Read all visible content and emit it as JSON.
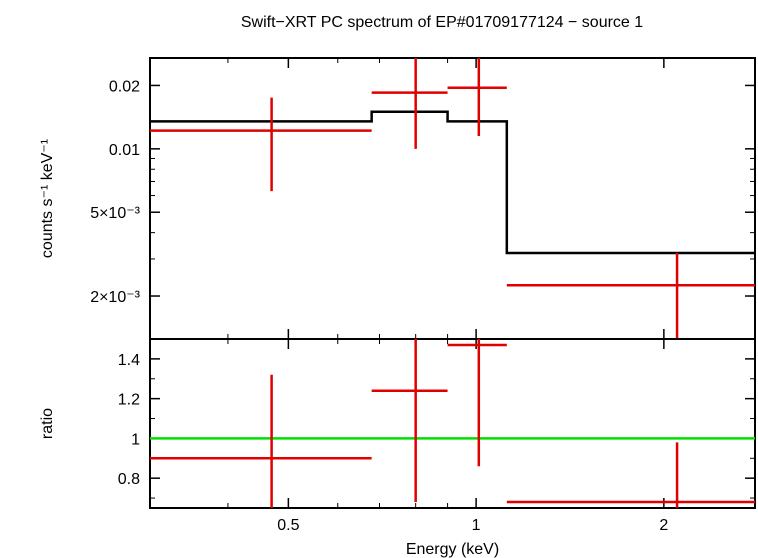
{
  "title": "Swift−XRT PC spectrum of EP#01709177124 − source 1",
  "colors": {
    "data": "#e00000",
    "model": "#000000",
    "unity": "#00e000",
    "frame": "#000000"
  },
  "chart_data": [
    {
      "type": "scatter",
      "panel": "spectrum",
      "xscale": "log",
      "yscale": "log",
      "xlim": [
        0.3,
        2.8
      ],
      "ylim": [
        0.00125,
        0.027
      ],
      "ylabel": "counts s⁻¹ keV⁻¹",
      "yticks": [
        {
          "value": 0.02,
          "label": "0.02"
        },
        {
          "value": 0.01,
          "label": "0.01"
        },
        {
          "value": 0.005,
          "label": "5×10⁻³"
        },
        {
          "value": 0.002,
          "label": "2×10⁻³"
        }
      ],
      "minor_yticks": [
        0.003,
        0.004,
        0.006,
        0.007,
        0.008,
        0.009
      ],
      "data_points": [
        {
          "x_lo": 0.3,
          "x": 0.47,
          "x_hi": 0.68,
          "y": 0.0122,
          "y_lo": 0.0063,
          "y_hi": 0.0175
        },
        {
          "x_lo": 0.68,
          "x": 0.8,
          "x_hi": 0.9,
          "y": 0.0185,
          "y_lo": 0.01,
          "y_hi": 0.027
        },
        {
          "x_lo": 0.9,
          "x": 1.01,
          "x_hi": 1.12,
          "y": 0.0195,
          "y_lo": 0.0115,
          "y_hi": 0.027
        },
        {
          "x_lo": 1.12,
          "x": 2.1,
          "x_hi": 2.8,
          "y": 0.00225,
          "y_lo": 0.00125,
          "y_hi": 0.0032
        }
      ],
      "model_steps": [
        {
          "x_lo": 0.3,
          "x_hi": 0.68,
          "y": 0.0135
        },
        {
          "x_lo": 0.68,
          "x_hi": 0.9,
          "y": 0.015
        },
        {
          "x_lo": 0.9,
          "x_hi": 1.12,
          "y": 0.0135
        },
        {
          "x_lo": 1.12,
          "x_hi": 2.8,
          "y": 0.0032
        }
      ]
    },
    {
      "type": "scatter",
      "panel": "ratio",
      "xscale": "log",
      "xlim": [
        0.3,
        2.8
      ],
      "ylim": [
        0.65,
        1.5
      ],
      "xlabel": "Energy (keV)",
      "ylabel": "ratio",
      "xticks": [
        {
          "value": 0.5,
          "label": "0.5"
        },
        {
          "value": 1,
          "label": "1"
        },
        {
          "value": 2,
          "label": "2"
        }
      ],
      "minor_xticks": [
        0.4,
        0.6,
        0.7,
        0.8,
        0.9
      ],
      "yticks": [
        {
          "value": 0.8,
          "label": "0.8"
        },
        {
          "value": 1.0,
          "label": "1"
        },
        {
          "value": 1.2,
          "label": "1.2"
        },
        {
          "value": 1.4,
          "label": "1.4"
        }
      ],
      "minor_yticks": [
        0.7,
        0.9,
        1.1,
        1.3
      ],
      "unity_line": 1.0,
      "data_points": [
        {
          "x_lo": 0.3,
          "x": 0.47,
          "x_hi": 0.68,
          "y": 0.9,
          "y_lo": 0.65,
          "y_hi": 1.32
        },
        {
          "x_lo": 0.68,
          "x": 0.8,
          "x_hi": 0.9,
          "y": 1.24,
          "y_lo": 0.68,
          "y_hi": 1.5
        },
        {
          "x_lo": 0.9,
          "x": 1.01,
          "x_hi": 1.12,
          "y": 1.47,
          "y_lo": 0.86,
          "y_hi": 1.5
        },
        {
          "x_lo": 1.12,
          "x": 2.1,
          "x_hi": 2.8,
          "y": 0.68,
          "y_lo": 0.65,
          "y_hi": 0.98
        }
      ]
    }
  ]
}
